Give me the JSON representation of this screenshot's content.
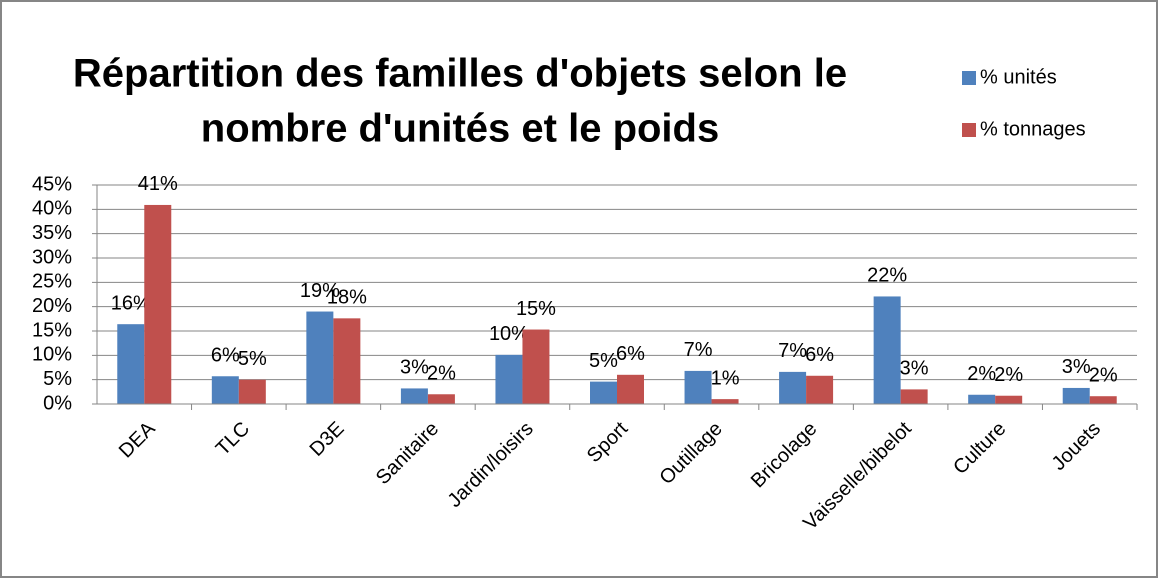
{
  "chart_data": {
    "type": "bar",
    "title": "Répartition des familles d'objets selon le",
    "subtitle": "nombre d'unités et le poids",
    "categories": [
      "DEA",
      "TLC",
      "D3E",
      "Sanitaire",
      "Jardin/loisirs",
      "Sport",
      "Outillage",
      "Bricolage",
      "Vaisselle/bibelot",
      "Culture",
      "Jouets"
    ],
    "series": [
      {
        "name": "% unités",
        "color": "#4f81bd",
        "values": [
          16.4,
          5.7,
          19.0,
          3.2,
          10.1,
          4.6,
          6.8,
          6.6,
          22.1,
          1.9,
          3.3
        ],
        "value_labels": [
          "16%",
          "6%",
          "19%",
          "3%",
          "10%",
          "5%",
          "7%",
          "7%",
          "22%",
          "2%",
          "3%"
        ]
      },
      {
        "name": "% tonnages",
        "color": "#c0504d",
        "values": [
          40.9,
          5.0,
          17.6,
          2.0,
          15.3,
          6.0,
          1.0,
          5.8,
          3.0,
          1.7,
          1.6
        ],
        "value_labels": [
          "41%",
          "5%",
          "18%",
          "2%",
          "15%",
          "6%",
          "1%",
          "6%",
          "3%",
          "2%",
          "2%"
        ]
      }
    ],
    "ylim": [
      0,
      45
    ],
    "yticks": [
      {
        "value": 0,
        "label": "0%"
      },
      {
        "value": 5,
        "label": "5%"
      },
      {
        "value": 10,
        "label": "10%"
      },
      {
        "value": 15,
        "label": "15%"
      },
      {
        "value": 20,
        "label": "20%"
      },
      {
        "value": 25,
        "label": "25%"
      },
      {
        "value": 30,
        "label": "30%"
      },
      {
        "value": 35,
        "label": "35%"
      },
      {
        "value": 40,
        "label": "40%"
      },
      {
        "value": 45,
        "label": "45%"
      }
    ],
    "grid": true,
    "legend": "top-right"
  }
}
